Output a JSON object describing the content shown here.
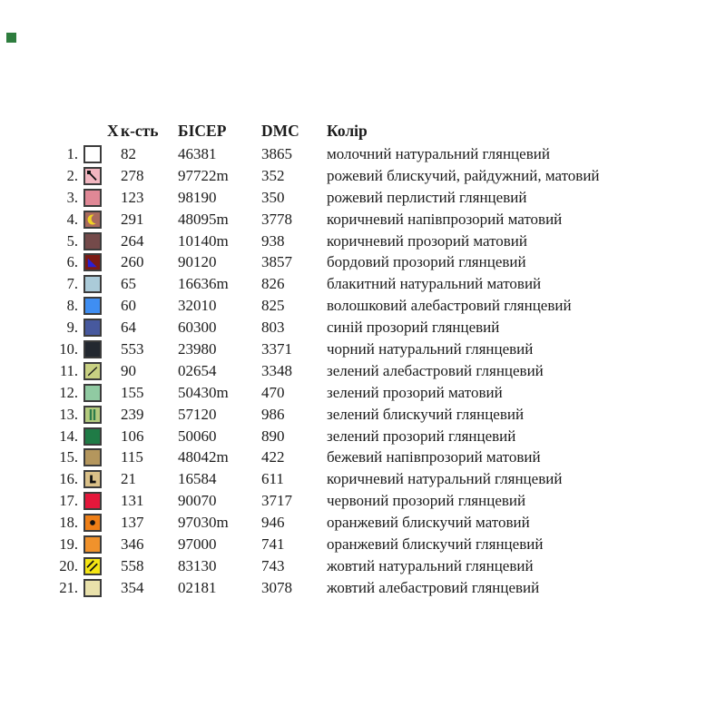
{
  "page": {
    "background": "#ffffff"
  },
  "corner_marker": {
    "color": "#2e7d3e"
  },
  "table": {
    "headers": {
      "symbol": "X",
      "count": "к-сть",
      "bead": "БІСЕР",
      "dmc": "DMC",
      "color": "Колір"
    },
    "swatch_border_color": "#3c3c3c",
    "rows": [
      {
        "num": "1.",
        "swatch": "#ffffff",
        "symbol": {
          "icon": "none",
          "color": ""
        },
        "count": "82",
        "bead": "46381",
        "dmc": "3865",
        "color_name": "молочний натуральний глянцевий"
      },
      {
        "num": "2.",
        "swatch": "#f2b6c0",
        "symbol": {
          "icon": "pin",
          "color": "#111111"
        },
        "count": "278",
        "bead": "97722m",
        "dmc": "352",
        "color_name": "рожевий блискучий, райдужний, матовий"
      },
      {
        "num": "3.",
        "swatch": "#e08896",
        "symbol": {
          "icon": "none",
          "color": ""
        },
        "count": "123",
        "bead": "98190",
        "dmc": "350",
        "color_name": "рожевий перлистий глянцевий"
      },
      {
        "num": "4.",
        "swatch": "#a96a5e",
        "symbol": {
          "icon": "crescent",
          "color": "#f2d324"
        },
        "count": "291",
        "bead": "48095m",
        "dmc": "3778",
        "color_name": "коричневий напівпрозорий матовий"
      },
      {
        "num": "5.",
        "swatch": "#744a4a",
        "symbol": {
          "icon": "none",
          "color": ""
        },
        "count": "264",
        "bead": "10140m",
        "dmc": "938",
        "color_name": "коричневий прозорий матовий"
      },
      {
        "num": "6.",
        "swatch": "#7c1a14",
        "symbol": {
          "icon": "triangle",
          "color": "#2b1fd4"
        },
        "count": "260",
        "bead": "90120",
        "dmc": "3857",
        "color_name": "бордовий прозорий  глянцевий"
      },
      {
        "num": "7.",
        "swatch": "#abcbd9",
        "symbol": {
          "icon": "none",
          "color": ""
        },
        "count": "65",
        "bead": "16636m",
        "dmc": "826",
        "color_name": "блакитний натуральний матовий"
      },
      {
        "num": "8.",
        "swatch": "#3f8ef2",
        "symbol": {
          "icon": "none",
          "color": ""
        },
        "count": "60",
        "bead": "32010",
        "dmc": "825",
        "color_name": "волошковий алебастровий глянцевий"
      },
      {
        "num": "9.",
        "swatch": "#47599e",
        "symbol": {
          "icon": "none",
          "color": ""
        },
        "count": "64",
        "bead": "60300",
        "dmc": "803",
        "color_name": "синій прозорий глянцевий"
      },
      {
        "num": "10.",
        "swatch": "#232830",
        "symbol": {
          "icon": "none",
          "color": ""
        },
        "count": "553",
        "bead": "23980",
        "dmc": "3371",
        "color_name": "чорний натуральний глянцевий"
      },
      {
        "num": "11.",
        "swatch": "#c9d182",
        "symbol": {
          "icon": "diagonal",
          "color": "#1c1c1c"
        },
        "count": "90",
        "bead": "02654",
        "dmc": "3348",
        "color_name": "зелений алебастровий глянцевий"
      },
      {
        "num": "12.",
        "swatch": "#90caa2",
        "symbol": {
          "icon": "none",
          "color": ""
        },
        "count": "155",
        "bead": "50430m",
        "dmc": "470",
        "color_name": "зелений прозорий матовий"
      },
      {
        "num": "13.",
        "swatch": "#b4cb7e",
        "symbol": {
          "icon": "vertical-bars",
          "color": "#2d7c4b"
        },
        "count": "239",
        "bead": "57120",
        "dmc": "986",
        "color_name": "зелений блискучий глянцевий"
      },
      {
        "num": "14.",
        "swatch": "#1f7b46",
        "symbol": {
          "icon": "none",
          "color": ""
        },
        "count": "106",
        "bead": "50060",
        "dmc": "890",
        "color_name": "зелений прозорий глянцевий"
      },
      {
        "num": "15.",
        "swatch": "#b4965d",
        "symbol": {
          "icon": "none",
          "color": ""
        },
        "count": "115",
        "bead": "48042m",
        "dmc": "422",
        "color_name": "бежевий напівпрозорий матовий"
      },
      {
        "num": "16.",
        "swatch": "#dac088",
        "symbol": {
          "icon": "letter-l",
          "color": "#111111"
        },
        "count": "21",
        "bead": "16584",
        "dmc": "611",
        "color_name": "коричневий натуральний глянцевий"
      },
      {
        "num": "17.",
        "swatch": "#e4173b",
        "symbol": {
          "icon": "none",
          "color": ""
        },
        "count": "131",
        "bead": "90070",
        "dmc": "3717",
        "color_name": "червоний прозорий глянцевий"
      },
      {
        "num": "18.",
        "swatch": "#ee7f17",
        "symbol": {
          "icon": "dot",
          "color": "#111111"
        },
        "count": "137",
        "bead": "97030m",
        "dmc": "946",
        "color_name": "оранжевий блискучий матовий"
      },
      {
        "num": "19.",
        "swatch": "#f0922c",
        "symbol": {
          "icon": "none",
          "color": ""
        },
        "count": "346",
        "bead": "97000",
        "dmc": "741",
        "color_name": "оранжевий блискучий глянцевий"
      },
      {
        "num": "20.",
        "swatch": "#f5e514",
        "symbol": {
          "icon": "double-diagonal",
          "color": "#111111"
        },
        "count": "558",
        "bead": "83130",
        "dmc": "743",
        "color_name": "жовтий натуральний глянцевий"
      },
      {
        "num": "21.",
        "swatch": "#e9e1ab",
        "symbol": {
          "icon": "none",
          "color": ""
        },
        "count": "354",
        "bead": "02181",
        "dmc": "3078",
        "color_name": "жовтий алебастровий глянцевий"
      }
    ]
  }
}
